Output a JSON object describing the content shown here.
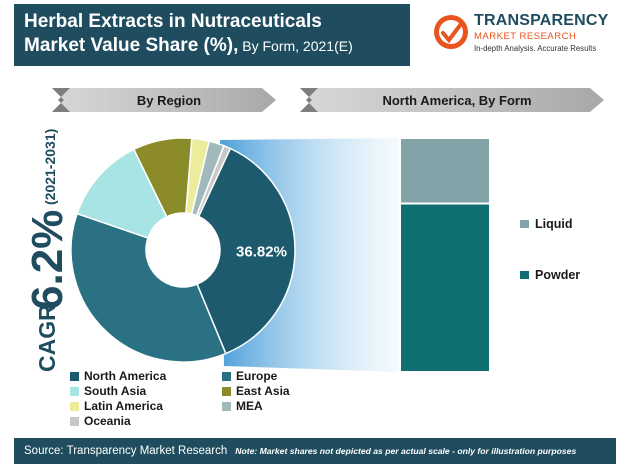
{
  "header": {
    "title_line1": "Herbal Extracts in Nutraceuticals",
    "title_line2_bold": "Market Value Share (%),",
    "title_line2_normal": " By Form, 2021(E)"
  },
  "logo": {
    "name": "TRANSPARENCY",
    "sub": "MARKET RESEARCH",
    "tagline": "In-depth Analysis. Accurate Results"
  },
  "sidebar": {
    "cagr_label": "CAGR",
    "cagr_value": "6.2%",
    "cagr_period": "(2021-2031)"
  },
  "footer": {
    "source": "Source: Transparency Market Research",
    "note": "Note: Market shares not depicted as per actual scale - only for illustration purposes"
  },
  "colors": {
    "header_bg": "#1f4d5f",
    "accent_orange": "#e8531e"
  },
  "chart_data": [
    {
      "type": "pie",
      "variant": "donut",
      "title": "By Region",
      "categories": [
        "North America",
        "Europe",
        "South Asia",
        "East Asia",
        "Latin America",
        "MEA",
        "Oceania"
      ],
      "values": [
        36.82,
        36.5,
        12.5,
        8.5,
        2.5,
        2.2,
        0.98
      ],
      "colors": [
        "#1d5a6e",
        "#2a7283",
        "#a8e4e4",
        "#8b8b2a",
        "#ecec9c",
        "#a0babb",
        "#c8c8c8"
      ],
      "data_labels": [
        {
          "category": "North America",
          "text": "36.82%"
        }
      ],
      "legend_position": "bottom"
    },
    {
      "type": "bar",
      "variant": "100% stacked",
      "title": "North America, By Form",
      "categories": [
        "North America"
      ],
      "series": [
        {
          "name": "Liquid",
          "values": [
            28
          ]
        },
        {
          "name": "Powder",
          "values": [
            72
          ]
        }
      ],
      "colors": [
        "#82a3a8",
        "#0f6f73"
      ],
      "legend_position": "right"
    }
  ]
}
